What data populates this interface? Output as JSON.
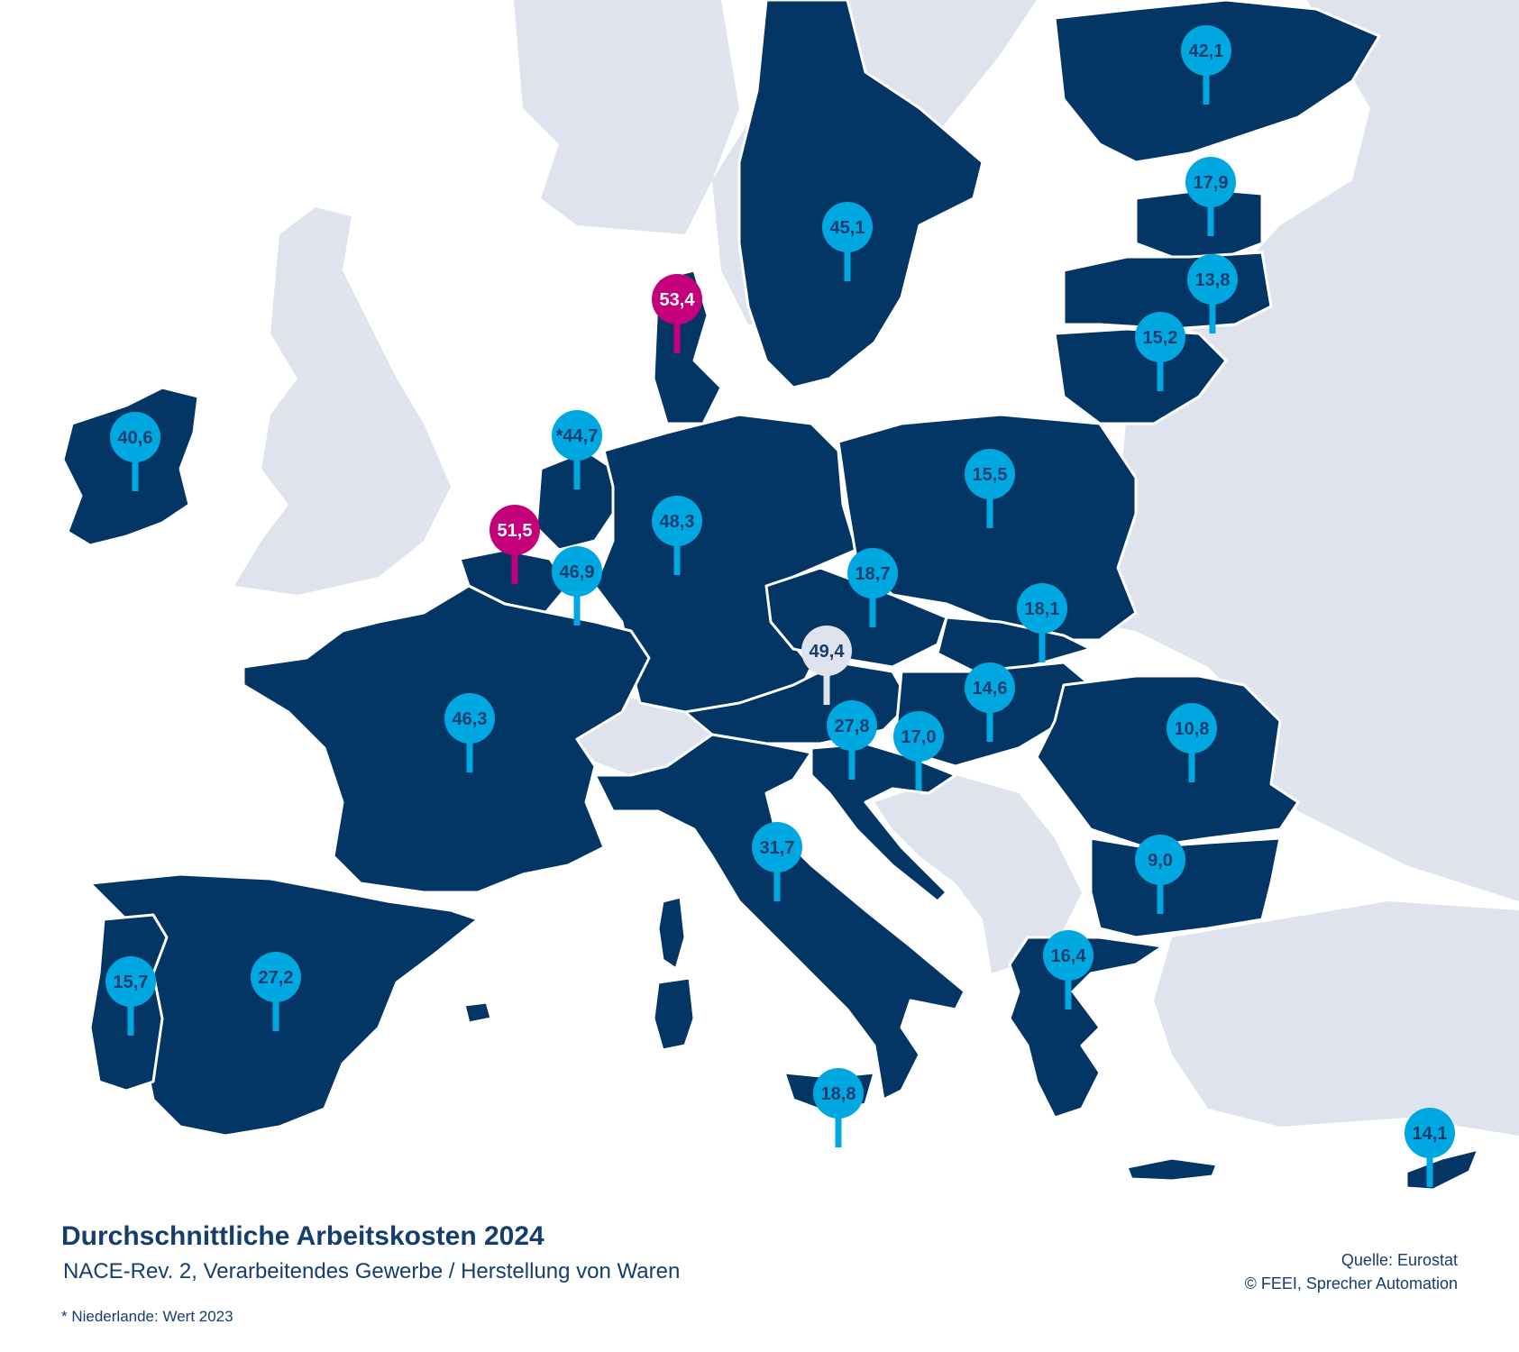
{
  "map": {
    "colors": {
      "sea": "#ffffff",
      "land_other": "#dfe3ee",
      "land_highlight": "#033565",
      "border": "#ffffff",
      "pin_default": "#00a8e1",
      "pin_text_default": "#153e6f",
      "pin_top": "#c4007b",
      "pin_top_text": "#ffffff",
      "pin_light": "#dfe3ee"
    },
    "pins": [
      {
        "id": "finland",
        "label": "42,1",
        "style": "default"
      },
      {
        "id": "estonia",
        "label": "17,9",
        "style": "default"
      },
      {
        "id": "latvia",
        "label": "13,8",
        "style": "default"
      },
      {
        "id": "lithuania",
        "label": "15,2",
        "style": "default"
      },
      {
        "id": "sweden",
        "label": "45,1",
        "style": "default"
      },
      {
        "id": "denmark",
        "label": "53,4",
        "style": "top"
      },
      {
        "id": "ireland",
        "label": "40,6",
        "style": "default"
      },
      {
        "id": "netherlands",
        "label": "*44,7",
        "style": "default"
      },
      {
        "id": "belgium",
        "label": "51,5",
        "style": "top"
      },
      {
        "id": "luxembourg",
        "label": "46,9",
        "style": "default"
      },
      {
        "id": "germany",
        "label": "48,3",
        "style": "default"
      },
      {
        "id": "poland",
        "label": "15,5",
        "style": "default"
      },
      {
        "id": "czechia",
        "label": "18,7",
        "style": "default"
      },
      {
        "id": "slovakia",
        "label": "18,1",
        "style": "default"
      },
      {
        "id": "austria",
        "label": "49,4",
        "style": "light"
      },
      {
        "id": "hungary",
        "label": "14,6",
        "style": "default"
      },
      {
        "id": "slovenia",
        "label": "27,8",
        "style": "default"
      },
      {
        "id": "croatia",
        "label": "17,0",
        "style": "default"
      },
      {
        "id": "romania",
        "label": "10,8",
        "style": "default"
      },
      {
        "id": "france",
        "label": "46,3",
        "style": "default"
      },
      {
        "id": "italy",
        "label": "31,7",
        "style": "default"
      },
      {
        "id": "bulgaria",
        "label": "9,0",
        "style": "default"
      },
      {
        "id": "greece",
        "label": "16,4",
        "style": "default"
      },
      {
        "id": "portugal",
        "label": "15,7",
        "style": "default"
      },
      {
        "id": "spain",
        "label": "27,2",
        "style": "default"
      },
      {
        "id": "malta",
        "label": "18,8",
        "style": "default"
      },
      {
        "id": "cyprus",
        "label": "14,1",
        "style": "default"
      }
    ]
  },
  "caption": {
    "title": "Durchschnittliche Arbeitskosten 2024",
    "subtitle": "NACE-Rev. 2, Verarbeitendes Gewerbe / Herstellung von Waren",
    "footnote": "* Niederlande: Wert 2023",
    "source_line1": "Quelle: Eurostat",
    "source_line2": "© FEEI, Sprecher Automation"
  }
}
